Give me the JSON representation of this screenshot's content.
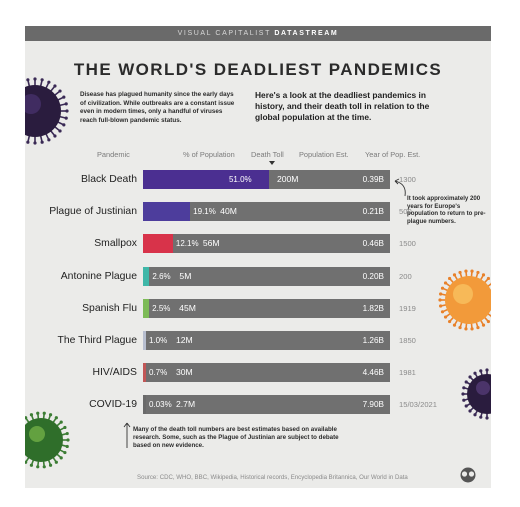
{
  "header": {
    "brand": "VISUAL CAPITALIST",
    "product": "DATASTREAM"
  },
  "title": "THE WORLD'S DEADLIEST PANDEMICS",
  "intro": "Disease has plagued humanity since the early days of civilization. While outbreaks are a constant issue even in modern times, only a handful of viruses reach full-blown pandemic status.",
  "lede": "Here's a look at the deadliest pandemics in history, and their death toll in relation to the global population at the time.",
  "columns": {
    "pandemic": "Pandemic",
    "pct": "% of Population",
    "deaths": "Death Toll",
    "pop": "Population Est.",
    "year": "Year of Pop. Est."
  },
  "colors": {
    "black_death": "#4b2f91",
    "justinian": "#4d3d9c",
    "smallpox": "#d8334a",
    "antonine": "#3fb7a8",
    "spanish_flu": "#7dbb57",
    "third_plague": "#b8bfd0",
    "hiv": "#c25757",
    "covid": "#6a6a6a",
    "track": "#707070"
  },
  "chart_data": {
    "type": "bar",
    "categories": [
      "Black Death",
      "Plague of Justinian",
      "Smallpox",
      "Antonine Plague",
      "Spanish Flu",
      "The Third Plague",
      "HIV/AIDS",
      "COVID-19"
    ],
    "values": [
      51.0,
      19.1,
      12.1,
      2.6,
      2.5,
      1.0,
      0.7,
      0.03
    ],
    "pct_labels": [
      "51.0%",
      "19.1%",
      "12.1%",
      "2.6%",
      "2.5%",
      "1.0%",
      "0.7%",
      "0.03%"
    ],
    "death_tolls": [
      "200M",
      "40M",
      "56M",
      "5M",
      "45M",
      "12M",
      "30M",
      "2.7M"
    ],
    "populations": [
      "0.39B",
      "0.21B",
      "0.46B",
      "0.20B",
      "1.82B",
      "1.26B",
      "4.46B",
      "7.90B"
    ],
    "years": [
      "1300",
      "500",
      "1500",
      "200",
      "1919",
      "1850",
      "1981",
      "15/03/2021"
    ],
    "xlim": [
      0,
      100
    ]
  },
  "notes": {
    "black_death": "It took approximately 200 years for Europe's population to return to pre-plague numbers.",
    "footnote": "Many of the death toll numbers are best estimates based on available research. Some, such as the Plague of Justinian are subject to debate based on new evidence."
  },
  "source": "Source: CDC, WHO, BBC, Wikipedia, Historical records, Encyclopedia Britannica, Our World in Data",
  "decorations": [
    "virus-purple-icon",
    "virus-orange-icon",
    "virus-dark-purple-icon",
    "virus-green-icon",
    "visual-capitalist-logo"
  ]
}
